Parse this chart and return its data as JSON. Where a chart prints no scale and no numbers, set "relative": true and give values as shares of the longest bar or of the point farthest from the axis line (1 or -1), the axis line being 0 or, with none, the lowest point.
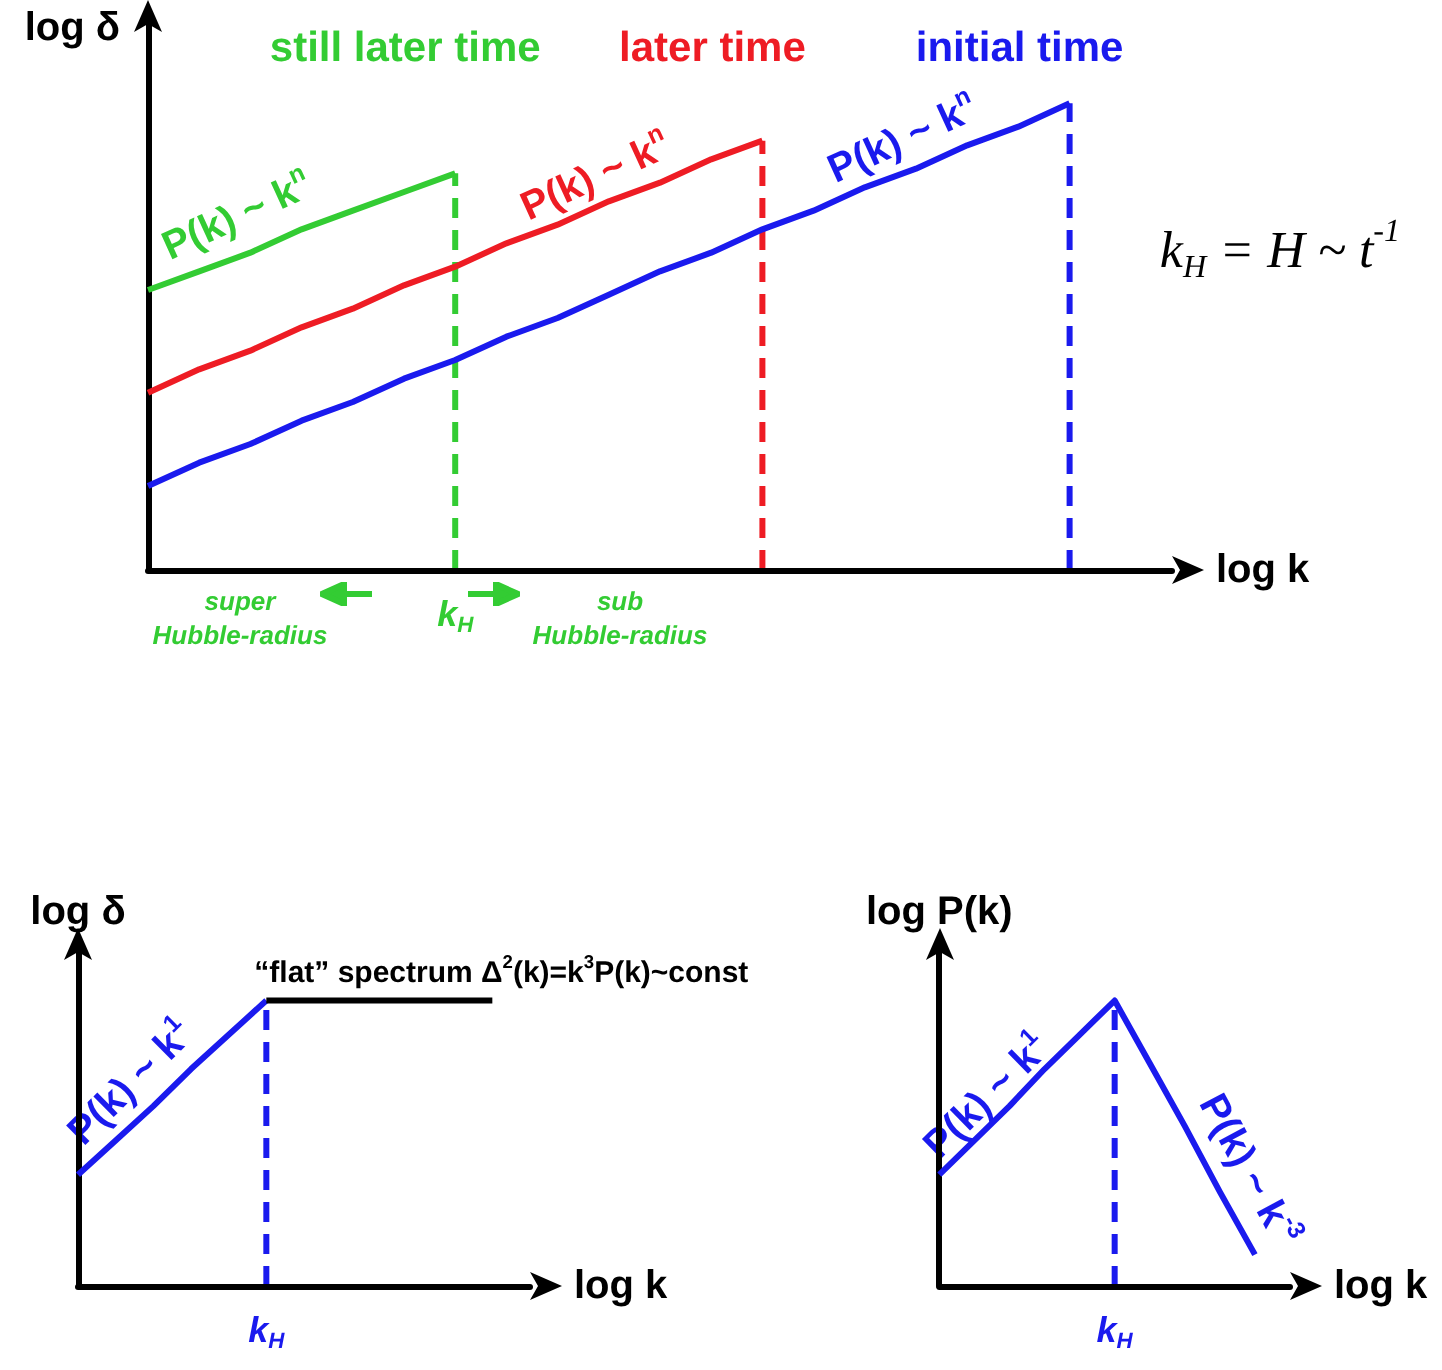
{
  "chart_data": [
    {
      "type": "line",
      "relative": true,
      "xlabel": "log k",
      "ylabel": "log δ",
      "marker": "none",
      "line_style": "solid",
      "categories": [
        null,
        null,
        null,
        null,
        null,
        null,
        null,
        null,
        null,
        null,
        null,
        null,
        null,
        null,
        null,
        null,
        null,
        null,
        null,
        null,
        null
      ],
      "series": [
        {
          "name": "still later time",
          "color": "#33cc33",
          "values": [
            0.6,
            0.64,
            0.68,
            0.73,
            0.77,
            0.81,
            0.85,
            null,
            null,
            null,
            null,
            null,
            null,
            null,
            null,
            null,
            null,
            null,
            null,
            null,
            null
          ]
        },
        {
          "name": "later time",
          "color": "#ee1c24",
          "values": [
            0.38,
            0.43,
            0.47,
            0.52,
            0.56,
            0.61,
            0.65,
            0.7,
            0.74,
            0.79,
            0.83,
            0.88,
            0.92,
            null,
            null,
            null,
            null,
            null,
            null,
            null,
            null
          ]
        },
        {
          "name": "initial time",
          "color": "#1a1aee",
          "values": [
            0.18,
            0.23,
            0.27,
            0.32,
            0.36,
            0.41,
            0.45,
            0.5,
            0.54,
            0.59,
            0.64,
            0.68,
            0.73,
            0.77,
            0.82,
            0.86,
            0.91,
            0.95,
            1,
            null,
            null
          ]
        }
      ],
      "ref_lines": [
        {
          "axis": "x",
          "label": "k$_{H}$",
          "color": "#33cc33",
          "line_style": "dashed"
        },
        {
          "axis": "x",
          "color": "#ee1c24",
          "line_style": "dashed"
        },
        {
          "axis": "x",
          "color": "#1a1aee",
          "line_style": "dashed"
        }
      ],
      "annotations": [
        "P(k) ~ k$^{n}$",
        "P(k) ~ k$^{n}$",
        "P(k) ~ k$^{n}$",
        "super Hubble-radius",
        "sub Hubble-radius",
        "k$_{H}$ = H ~ t$^{-1}$"
      ]
    },
    {
      "type": "line",
      "relative": true,
      "xlabel": "log k",
      "ylabel": "log δ",
      "marker": "none",
      "line_style": "solid",
      "categories": [
        null,
        null,
        null,
        null,
        null,
        null,
        null,
        null,
        null,
        null,
        null,
        null,
        null
      ],
      "series": [
        {
          "color": "#1a1aee",
          "values": [
            0.39,
            0.51,
            0.63,
            0.76,
            0.88,
            1,
            null,
            null,
            null,
            null,
            null,
            null,
            null
          ]
        },
        {
          "name": "“flat” spectrum Δ$^{2}$(k)=k$^{3}$P(k)~const",
          "color": "#000000",
          "values": [
            null,
            null,
            null,
            null,
            null,
            1,
            1,
            1,
            1,
            1,
            1,
            1,
            null
          ]
        }
      ],
      "ref_lines": [
        {
          "axis": "x",
          "label": "k$_{H}$",
          "color": "#1a1aee",
          "line_style": "dashed"
        }
      ],
      "annotations": [
        "P(k) ~ k$^{1}$"
      ]
    },
    {
      "type": "line",
      "relative": true,
      "xlabel": "log k",
      "ylabel": "log P(k)",
      "marker": "none",
      "line_style": "solid",
      "categories": [
        null,
        null,
        null,
        null,
        null,
        null,
        null,
        null,
        null,
        null,
        null
      ],
      "series": [
        {
          "color": "#1a1aee",
          "values": [
            0.39,
            0.51,
            0.63,
            0.76,
            0.88,
            1,
            0.78,
            0.56,
            0.33,
            0.11,
            null
          ]
        }
      ],
      "ref_lines": [
        {
          "axis": "x",
          "label": "k$_{H}$",
          "color": "#1a1aee",
          "line_style": "dashed"
        }
      ],
      "annotations": [
        "P(k) ~ k$^{1}$",
        "P(k) ~ k$^{-3}$"
      ]
    }
  ]
}
